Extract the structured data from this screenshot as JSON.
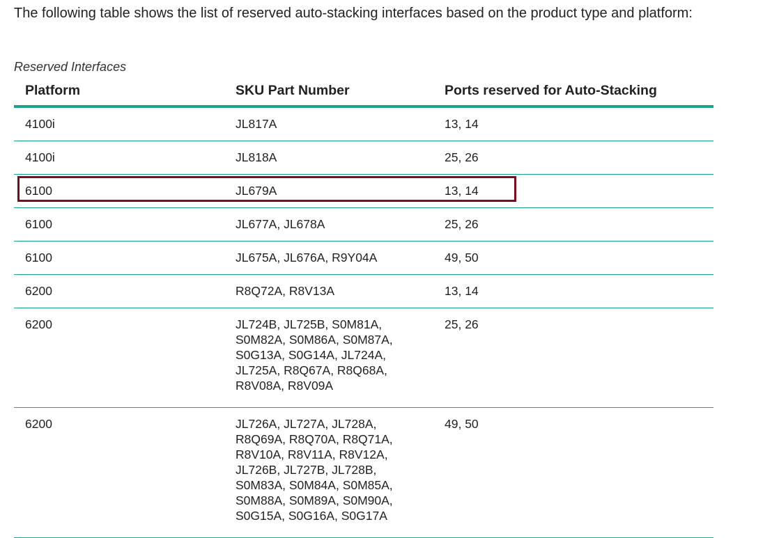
{
  "intro": "The following table shows the list of reserved auto-stacking interfaces based on the product type and platform:",
  "caption": "Reserved Interfaces",
  "table": {
    "header": [
      "Platform",
      "SKU Part Number",
      "Ports reserved for Auto-Stacking"
    ],
    "rows": [
      [
        "4100i",
        [
          "JL817A"
        ],
        "13, 14"
      ],
      [
        "4100i",
        [
          "JL818A"
        ],
        "25, 26"
      ],
      [
        "6100",
        [
          "JL679A"
        ],
        "13, 14"
      ],
      [
        "6100",
        [
          "JL677A, JL678A"
        ],
        "25, 26"
      ],
      [
        "6100",
        [
          "JL675A, JL676A, R9Y04A"
        ],
        "49, 50"
      ],
      [
        "6200",
        [
          "R8Q72A, R8V13A"
        ],
        "13, 14"
      ],
      [
        "6200",
        [
          "JL724B, JL725B, S0M81A,",
          "S0M82A, S0M86A, S0M87A,",
          "S0G13A, S0G14A, JL724A,",
          "JL725A, R8Q67A, R8Q68A,",
          "R8V08A, R8V09A"
        ],
        "25, 26"
      ],
      [
        "6200",
        [
          "JL726A, JL727A, JL728A,",
          "R8Q69A, R8Q70A, R8Q71A,",
          "R8V10A, R8V11A, R8V12A,",
          "JL726B, JL727B, JL728B,",
          "S0M83A, S0M84A, S0M85A,",
          "S0M88A, S0M89A, S0M90A,",
          "S0G15A, S0G16A, S0G17A"
        ],
        "49, 50"
      ]
    ]
  }
}
